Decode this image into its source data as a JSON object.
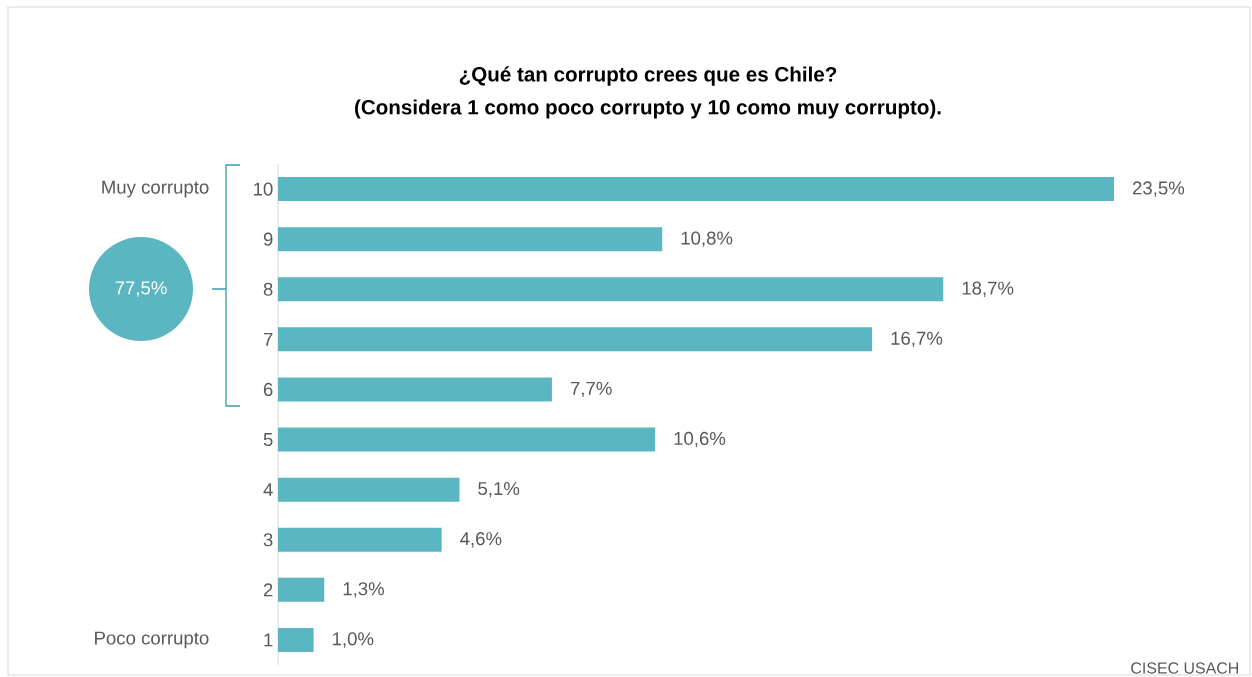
{
  "chart_data": {
    "type": "bar",
    "orientation": "horizontal",
    "title": "¿Qué tan corrupto crees que es Chile?",
    "subtitle": "(Considera 1 como poco corrupto y 10 como muy corrupto).",
    "categories": [
      "10",
      "9",
      "8",
      "7",
      "6",
      "5",
      "4",
      "3",
      "2",
      "1"
    ],
    "values": [
      23.5,
      10.8,
      18.7,
      16.7,
      7.7,
      10.6,
      5.1,
      4.6,
      1.3,
      1.0
    ],
    "value_labels": [
      "23,5%",
      "10,8%",
      "18,7%",
      "16,7%",
      "7,7%",
      "10,6%",
      "5,1%",
      "4,6%",
      "1,3%",
      "1,0%"
    ],
    "color": "#5ab6c0",
    "annotations": [
      "Muy corrupto",
      "Poco corrupto",
      "77,5%",
      "CISEC USACH"
    ]
  }
}
